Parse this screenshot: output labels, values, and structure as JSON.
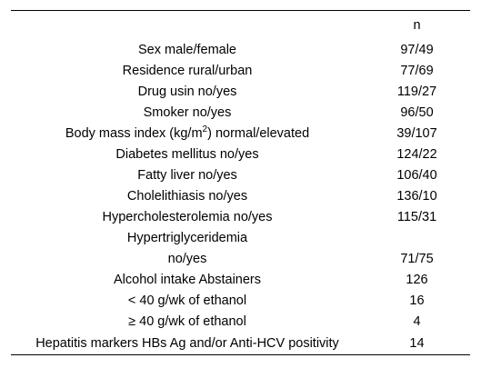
{
  "table": {
    "header": {
      "col1": "",
      "col2": "n"
    },
    "rows": [
      {
        "label": "Sex male/female",
        "value": "97/49"
      },
      {
        "label": "Residence rural/urban",
        "value": "77/69"
      },
      {
        "label": "Drug usin no/yes",
        "value": "119/27"
      },
      {
        "label": "Smoker no/yes",
        "value": "96/50"
      },
      {
        "label_pre": "Body mass index (kg/m",
        "label_sup": "2",
        "label_post": ") normal/elevated",
        "value": "39/107"
      },
      {
        "label": "Diabetes mellitus no/yes",
        "value": "124/22"
      },
      {
        "label": "Fatty liver no/yes",
        "value": "106/40"
      },
      {
        "label": "Cholelithiasis no/yes",
        "value": "136/10"
      },
      {
        "label": "Hypercholesterolemia no/yes",
        "value": "115/31"
      },
      {
        "label": "Hypertriglyceridemia",
        "value": ""
      },
      {
        "label": "no/yes",
        "value": "71/75"
      },
      {
        "label": "Alcohol intake Abstainers",
        "value": "126"
      },
      {
        "label": "< 40 g/wk of ethanol",
        "value": "16"
      },
      {
        "label": "≥ 40 g/wk of ethanol",
        "value": "4"
      },
      {
        "label": "Hepatitis markers HBs Ag and/or Anti-HCV positivity",
        "value": "14"
      }
    ]
  }
}
